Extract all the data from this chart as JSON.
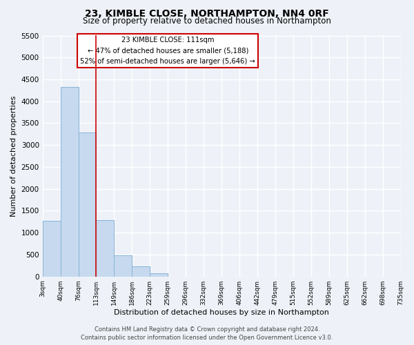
{
  "title": "23, KIMBLE CLOSE, NORTHAMPTON, NN4 0RF",
  "subtitle": "Size of property relative to detached houses in Northampton",
  "xlabel": "Distribution of detached houses by size in Northampton",
  "ylabel": "Number of detached properties",
  "bin_labels": [
    "3sqm",
    "40sqm",
    "76sqm",
    "113sqm",
    "149sqm",
    "186sqm",
    "223sqm",
    "259sqm",
    "296sqm",
    "332sqm",
    "369sqm",
    "406sqm",
    "442sqm",
    "479sqm",
    "515sqm",
    "552sqm",
    "589sqm",
    "625sqm",
    "662sqm",
    "698sqm",
    "735sqm"
  ],
  "bar_values": [
    1270,
    4330,
    3290,
    1290,
    480,
    230,
    80,
    0,
    0,
    0,
    0,
    0,
    0,
    0,
    0,
    0,
    0,
    0,
    0,
    0
  ],
  "bar_color": "#c6d9ee",
  "bar_edge_color": "#88b4d8",
  "marker_label": "23 KIMBLE CLOSE: 111sqm",
  "annotation_line1": "← 47% of detached houses are smaller (5,188)",
  "annotation_line2": "52% of semi-detached houses are larger (5,646) →",
  "annotation_box_color": "#ffffff",
  "annotation_box_edge_color": "#cc0000",
  "marker_line_color": "#cc0000",
  "ylim": [
    0,
    5500
  ],
  "yticks": [
    0,
    500,
    1000,
    1500,
    2000,
    2500,
    3000,
    3500,
    4000,
    4500,
    5000,
    5500
  ],
  "footer_line1": "Contains HM Land Registry data © Crown copyright and database right 2024.",
  "footer_line2": "Contains public sector information licensed under the Open Government Licence v3.0.",
  "bg_color": "#eef2f8",
  "grid_color": "#ffffff"
}
